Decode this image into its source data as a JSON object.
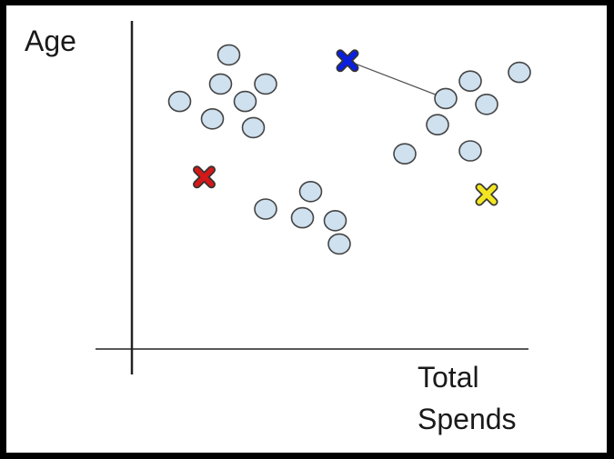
{
  "chart_data": {
    "type": "scatter",
    "xlabel": "Total\nSpends",
    "ylabel": "Age",
    "xlim": [
      0,
      100
    ],
    "ylim": [
      0,
      100
    ],
    "grid": false,
    "points": [
      {
        "x": 21,
        "y": 88
      },
      {
        "x": 19,
        "y": 78
      },
      {
        "x": 30,
        "y": 78
      },
      {
        "x": 9,
        "y": 72
      },
      {
        "x": 25,
        "y": 72
      },
      {
        "x": 17,
        "y": 66
      },
      {
        "x": 27,
        "y": 63
      },
      {
        "x": 41,
        "y": 41
      },
      {
        "x": 30,
        "y": 35
      },
      {
        "x": 39,
        "y": 32
      },
      {
        "x": 47,
        "y": 31
      },
      {
        "x": 48,
        "y": 23
      },
      {
        "x": 92,
        "y": 82
      },
      {
        "x": 80,
        "y": 79
      },
      {
        "x": 74,
        "y": 73
      },
      {
        "x": 84,
        "y": 71
      },
      {
        "x": 72,
        "y": 64
      },
      {
        "x": 80,
        "y": 55
      },
      {
        "x": 64,
        "y": 54
      }
    ],
    "centroids": [
      {
        "x": 50,
        "y": 86,
        "color": "#0b1fe0"
      },
      {
        "x": 15,
        "y": 46,
        "color": "#d41818"
      },
      {
        "x": 84,
        "y": 40,
        "color": "#f2e622"
      }
    ],
    "connector": {
      "from_centroid": 0,
      "to_point": 14
    },
    "colors": {
      "point_fill": "#cfe0ee",
      "point_stroke": "#444444",
      "axis": "#222222",
      "connector": "#555555"
    }
  }
}
